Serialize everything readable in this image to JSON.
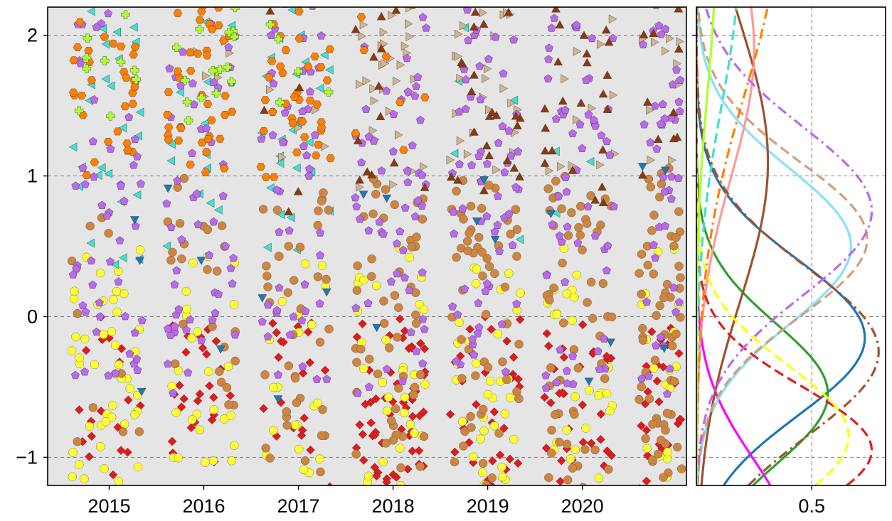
{
  "figure": {
    "background": "#ffffff",
    "panel_background": "#e5e5e5",
    "grid_color": "#7f7f7f"
  },
  "chart_data": [
    {
      "type": "scatter",
      "title": "",
      "xlabel": "",
      "ylabel": "",
      "xlim": [
        2014.35,
        2021.1
      ],
      "ylim": [
        -1.2,
        2.2
      ],
      "xticks": [
        2015,
        2016,
        2017,
        2018,
        2019,
        2020
      ],
      "xtick_labels": [
        "2015",
        "2016",
        "2017",
        "2018",
        "2019",
        "2020"
      ],
      "yticks": [
        -1,
        0,
        1,
        2
      ],
      "ytick_labels": [
        "−1",
        "0",
        "1",
        "2"
      ],
      "grid": "y-dashed",
      "description_note_removed": true,
      "clusters": [
        {
          "x": [
            2014.6,
            2015.35
          ]
        },
        {
          "x": [
            2015.6,
            2016.35
          ]
        },
        {
          "x": [
            2016.6,
            2017.35
          ]
        },
        {
          "x": [
            2017.6,
            2018.35
          ]
        },
        {
          "x": [
            2018.6,
            2019.35
          ]
        },
        {
          "x": [
            2019.6,
            2020.35
          ]
        },
        {
          "x": [
            2020.6,
            2021.05
          ]
        }
      ],
      "series": [
        {
          "color": "#e31a1c",
          "marker": "diamond",
          "bands": [
            [
              -1.2,
              0.0,
              0.7,
              1.0,
              0.8,
              2.2,
              1.3,
              1.2,
              1.0
            ]
          ]
        },
        {
          "color": "#ffff33",
          "marker": "circle",
          "bands": [
            [
              -1.2,
              0.5,
              1.8,
              1.0,
              0.8,
              1.2,
              1.3,
              1.0,
              0.7
            ]
          ]
        },
        {
          "color": "#40e0d0",
          "marker": "triangle-left",
          "bands": [
            [
              0.3,
              2.2,
              1.0,
              0.5,
              1.0,
              0.0,
              0.2,
              0.1,
              0.0
            ]
          ]
        },
        {
          "color": "#d2b48c",
          "marker": "triangle-right",
          "bands": [
            [
              1.0,
              2.2,
              0.0,
              0.3,
              0.2,
              1.2,
              1.0,
              0.5,
              0.4
            ]
          ]
        },
        {
          "color": "#cd853f",
          "marker": "circle",
          "bands": [
            [
              -1.2,
              1.0,
              0.4,
              1.0,
              1.5,
              2.0,
              2.2,
              2.2,
              2.3
            ]
          ]
        },
        {
          "color": "#ba68ec",
          "marker": "pentagon",
          "bands": [
            [
              -0.5,
              2.2,
              2.0,
              2.0,
              1.8,
              2.2,
              2.4,
              2.2,
              1.6
            ]
          ]
        },
        {
          "color": "#ff7f00",
          "marker": "hexagon",
          "bands": [
            [
              1.0,
              2.2,
              1.1,
              1.5,
              1.5,
              0.3,
              0.0,
              0.0,
              0.0
            ]
          ]
        },
        {
          "color": "#8b3a0f",
          "marker": "triangle-up",
          "bands": [
            [
              0.8,
              2.2,
              0.0,
              0.0,
              0.2,
              0.5,
              0.9,
              0.9,
              0.4
            ]
          ]
        },
        {
          "color": "#adff2f",
          "marker": "cross",
          "bands": [
            [
              1.4,
              2.2,
              0.4,
              0.6,
              0.2,
              0.0,
              0.0,
              0.0,
              0.0
            ]
          ]
        },
        {
          "color": "#1f77b4",
          "marker": "triangle-down",
          "bands": [
            [
              -0.5,
              1.1,
              0.1,
              0.1,
              0.1,
              0.1,
              0.1,
              0.1,
              0.1
            ]
          ]
        }
      ]
    },
    {
      "type": "line",
      "xlim": [
        0.0,
        0.82
      ],
      "ylim": [
        -1.2,
        2.2
      ],
      "xticks": [
        0.5
      ],
      "xtick_labels": [
        "0.5"
      ],
      "grid": "xy-dashed",
      "series": [
        {
          "color": "#1f77b4",
          "style": "solid",
          "peak_y": -0.15,
          "peak_x": 0.73,
          "sigma": 0.55
        },
        {
          "color": "#2ca02c",
          "style": "solid",
          "peak_y": -0.55,
          "peak_x": 0.57,
          "sigma": 0.5
        },
        {
          "color": "#ff00ff",
          "style": "solid",
          "peak_y": -1.6,
          "peak_x": 0.4,
          "sigma": 0.6
        },
        {
          "color": "#87e0ff",
          "style": "solid",
          "peak_y": 0.5,
          "peak_x": 0.67,
          "sigma": 0.55
        },
        {
          "color": "#a0522d",
          "style": "solid",
          "peak_y": 1.1,
          "peak_x": 0.31,
          "sigma": 1.0
        },
        {
          "color": "#ff9999",
          "style": "solid",
          "peak_y": 1.9,
          "peak_x": 0.25,
          "sigma": 0.9
        },
        {
          "color": "#e31a1c",
          "style": "dashed",
          "peak_y": -0.95,
          "peak_x": 0.76,
          "sigma": 0.45
        },
        {
          "color": "#ffff00",
          "style": "dashed",
          "peak_y": -0.85,
          "peak_x": 0.66,
          "sigma": 0.5
        },
        {
          "color": "#d2a07a",
          "style": "dashed",
          "peak_y": 0.55,
          "peak_x": 0.74,
          "sigma": 0.55
        },
        {
          "color": "#40e0d0",
          "style": "dashed",
          "peak_y": 2.5,
          "peak_x": 0.18,
          "sigma": 1.0
        },
        {
          "color": "#a0522d",
          "style": "dashdot",
          "peak_y": -0.25,
          "peak_x": 0.79,
          "sigma": 0.6
        },
        {
          "color": "#ba68ec",
          "style": "dashdot",
          "peak_y": 0.75,
          "peak_x": 0.76,
          "sigma": 0.6
        },
        {
          "color": "#ff7f00",
          "style": "dashdot",
          "peak_y": 2.8,
          "peak_x": 0.35,
          "sigma": 1.2
        },
        {
          "color": "#adff2f",
          "style": "solid",
          "peak_y": 2.5,
          "peak_x": 0.08,
          "sigma": 0.9
        }
      ]
    }
  ]
}
